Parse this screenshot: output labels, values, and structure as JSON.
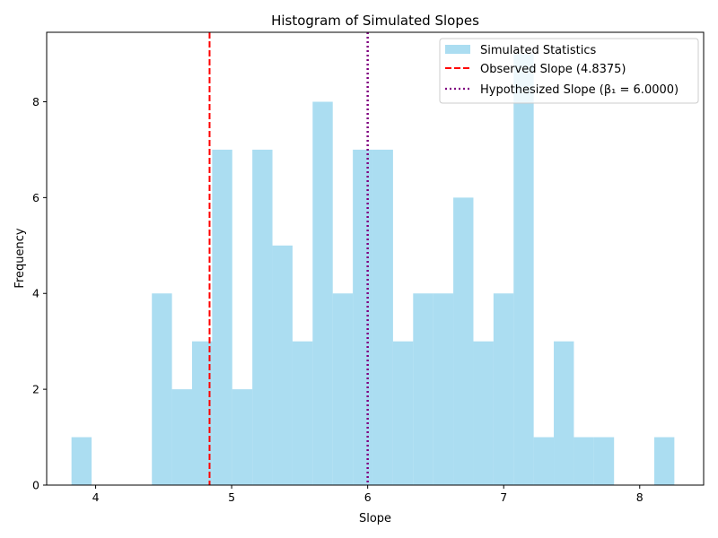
{
  "chart_data": {
    "type": "bar",
    "title": "Histogram of Simulated Slopes",
    "xlabel": "Slope",
    "ylabel": "Frequency",
    "xlim": [
      3.64,
      8.47
    ],
    "ylim": [
      0,
      9.45
    ],
    "x_ticks": [
      4,
      5,
      6,
      7,
      8
    ],
    "y_ticks": [
      0,
      2,
      4,
      6,
      8
    ],
    "grid": false,
    "legend_position": "top-right",
    "bin_start": 3.8225,
    "bin_width": 0.14774,
    "counts": [
      1,
      0,
      0,
      0,
      4,
      2,
      3,
      7,
      2,
      7,
      5,
      3,
      8,
      4,
      7,
      7,
      3,
      4,
      4,
      6,
      3,
      4,
      9,
      1,
      3,
      1,
      1,
      0,
      0,
      1
    ],
    "bar_color": "#87CEEB",
    "bar_opacity": 0.7,
    "series": [
      {
        "name": "Simulated Statistics",
        "kind": "histogram"
      }
    ],
    "reference_lines": [
      {
        "name": "Observed Slope (4.8375)",
        "x": 4.8375,
        "style": "dashed",
        "color": "#ff0000"
      },
      {
        "name": "Hypothesized Slope (β₁ = 6.0000)",
        "x": 6.0,
        "style": "dotted",
        "color": "#800080"
      }
    ],
    "legend": [
      "Simulated Statistics",
      "Observed Slope (4.8375)",
      "Hypothesized Slope (β₁ = 6.0000)"
    ]
  }
}
